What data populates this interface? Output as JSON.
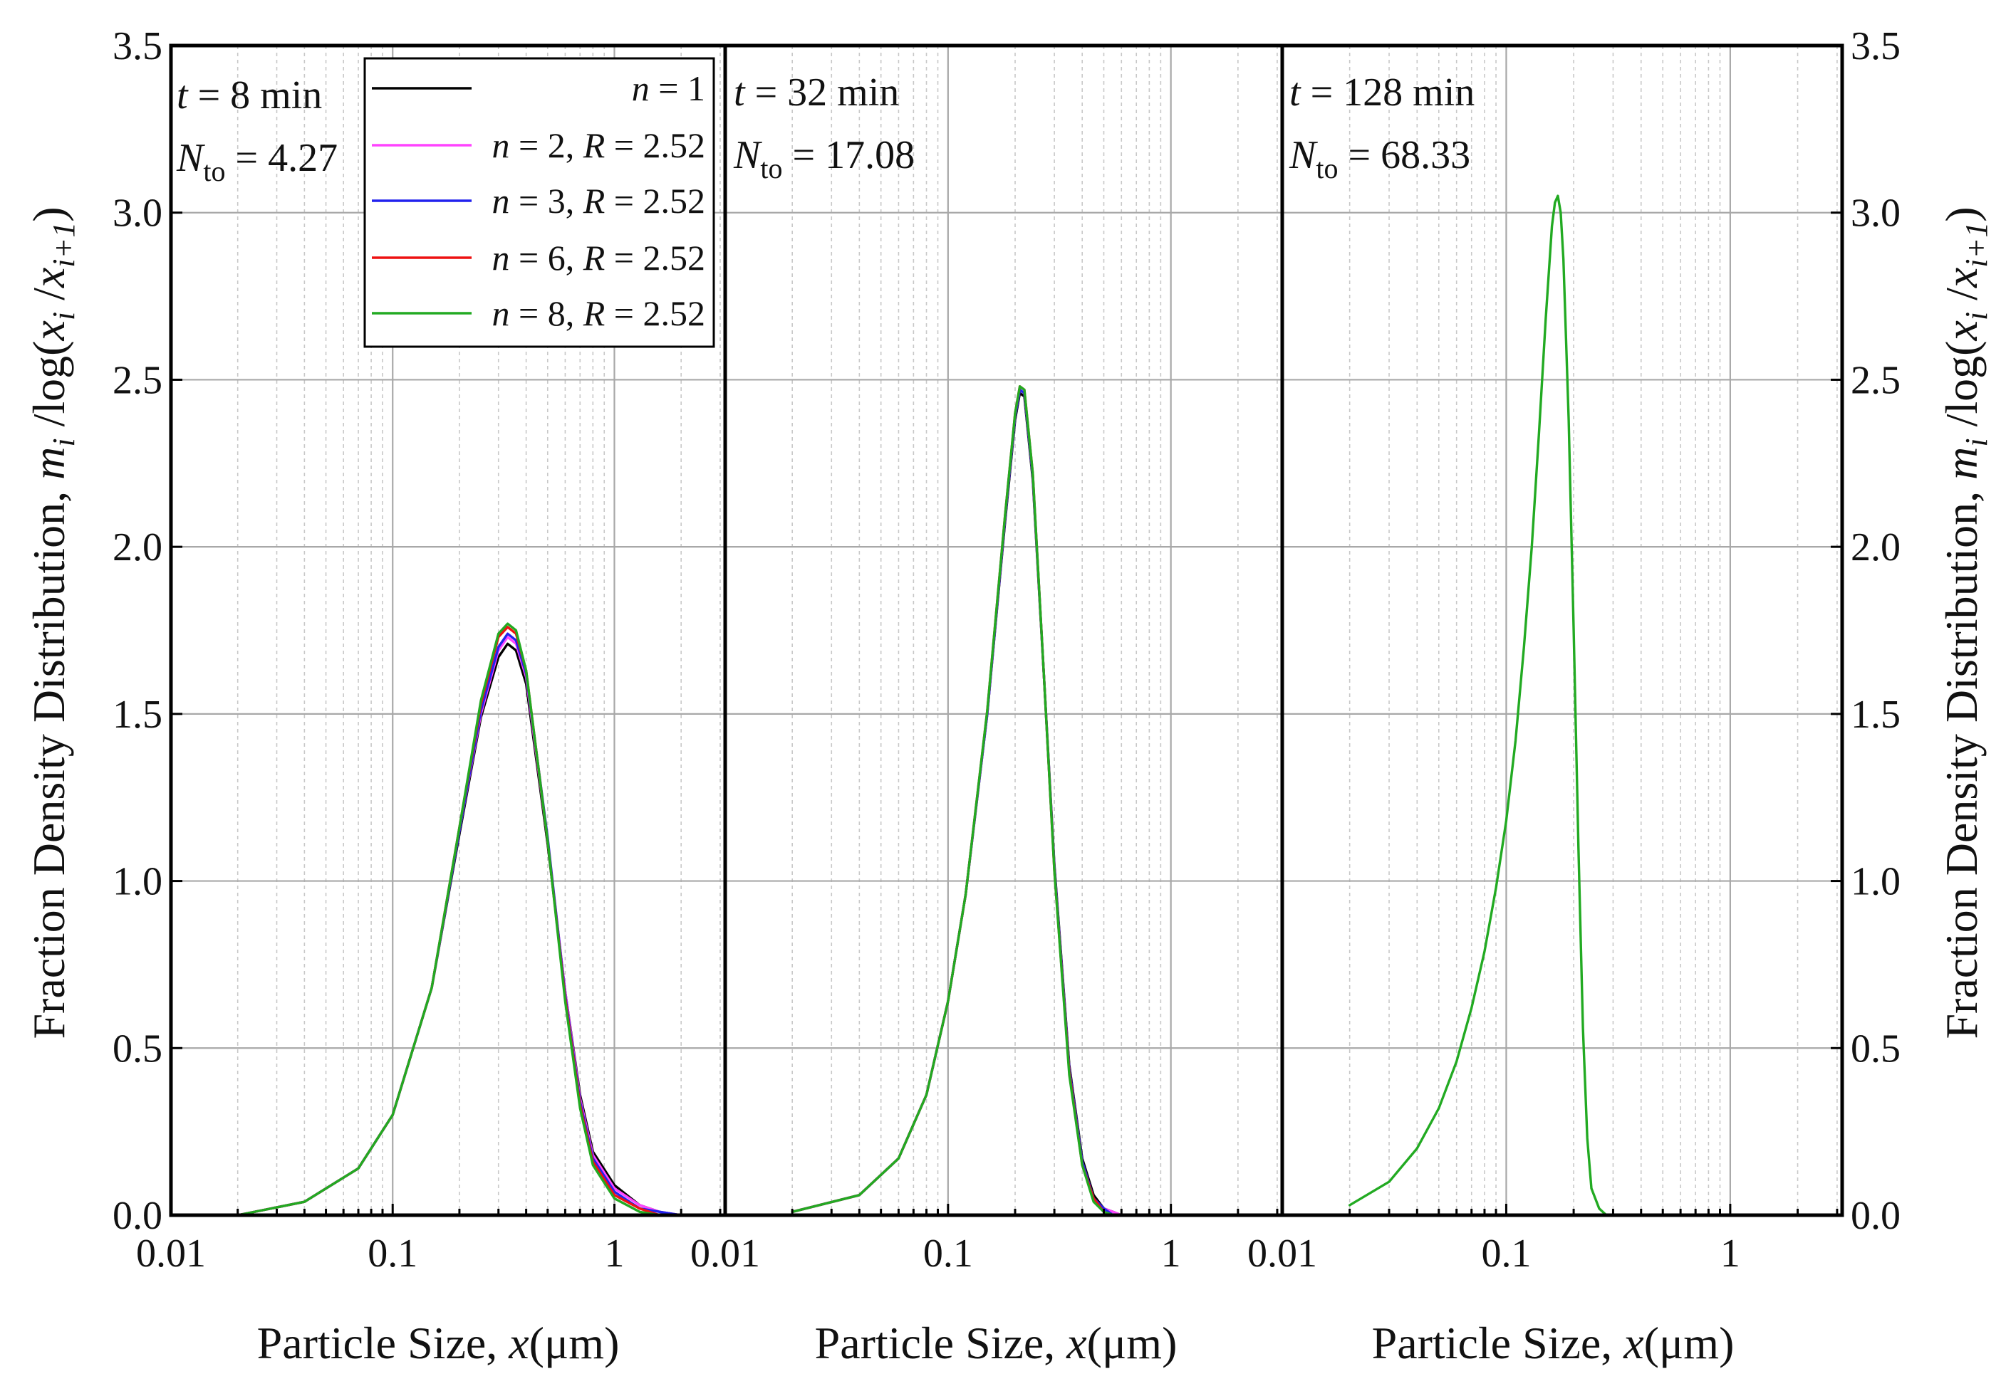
{
  "figure": {
    "ylabel_text": "Fraction Density Distribution, ",
    "ylabel_m": "m",
    "ylabel_i": "i",
    "ylabel_mid": " /log(",
    "ylabel_x1": "x",
    "ylabel_sub1": "i",
    "ylabel_slash": " /",
    "ylabel_x2": "x",
    "ylabel_sub2": "i+1",
    "ylabel_close": ")",
    "xlabel_text": "Particle Size, ",
    "xlabel_var": "x",
    "xlabel_unit": "(μm)",
    "colors": {
      "n1": "#000000",
      "n2": "#ff44ff",
      "n3": "#2222ee",
      "n6": "#ee1111",
      "n8": "#22aa22"
    },
    "legend": {
      "items": [
        {
          "var": "n",
          "eq": " = 1",
          "r": "",
          "req": "",
          "color_key": "n1"
        },
        {
          "var": "n",
          "eq": " = 2, ",
          "r": "R",
          "req": " = 2.52",
          "color_key": "n2"
        },
        {
          "var": "n",
          "eq": " = 3, ",
          "r": "R",
          "req": " = 2.52",
          "color_key": "n3"
        },
        {
          "var": "n",
          "eq": " = 6, ",
          "r": "R",
          "req": " = 2.52",
          "color_key": "n6"
        },
        {
          "var": "n",
          "eq": " = 8, ",
          "r": "R",
          "req": " = 2.52",
          "color_key": "n8"
        }
      ]
    },
    "panels": [
      {
        "t_var": "t",
        "t_text": " = 8 min",
        "n_var": "N",
        "n_sub": "to",
        "n_text": " = 4.27"
      },
      {
        "t_var": "t",
        "t_text": " = 32 min",
        "n_var": "N",
        "n_sub": "to",
        "n_text": " = 17.08"
      },
      {
        "t_var": "t",
        "t_text": " = 128 min",
        "n_var": "N",
        "n_sub": "to",
        "n_text": " = 68.33"
      }
    ]
  },
  "chart_data": [
    {
      "type": "line",
      "title": "",
      "xscale": "log",
      "xlim": [
        0.01,
        3.16
      ],
      "ylim": [
        0,
        3.5
      ],
      "xticks": [
        "0.01",
        "0.1",
        "1"
      ],
      "yticks": [
        "0.0",
        "0.5",
        "1.0",
        "1.5",
        "2.0",
        "2.5",
        "3.0",
        "3.5"
      ],
      "grid": true,
      "legend_position": "top-right",
      "series": [
        {
          "name": "n = 1",
          "color_key": "n1",
          "x": [
            0.02,
            0.04,
            0.07,
            0.1,
            0.15,
            0.2,
            0.25,
            0.3,
            0.33,
            0.36,
            0.4,
            0.5,
            0.6,
            0.7,
            0.8,
            1.0,
            1.3,
            1.6,
            2.0
          ],
          "y": [
            0.0,
            0.04,
            0.14,
            0.3,
            0.68,
            1.14,
            1.49,
            1.67,
            1.71,
            1.69,
            1.59,
            1.11,
            0.67,
            0.36,
            0.19,
            0.09,
            0.03,
            0.01,
            0.0
          ]
        },
        {
          "name": "n = 2, R = 2.52",
          "color_key": "n2",
          "x": [
            0.02,
            0.04,
            0.07,
            0.1,
            0.15,
            0.2,
            0.25,
            0.3,
            0.33,
            0.36,
            0.4,
            0.5,
            0.6,
            0.7,
            0.8,
            1.0,
            1.3,
            1.6,
            2.0
          ],
          "y": [
            0.0,
            0.04,
            0.14,
            0.3,
            0.68,
            1.15,
            1.5,
            1.69,
            1.73,
            1.71,
            1.61,
            1.12,
            0.67,
            0.35,
            0.18,
            0.08,
            0.03,
            0.01,
            0.0
          ]
        },
        {
          "name": "n = 3, R = 2.52",
          "color_key": "n3",
          "x": [
            0.02,
            0.04,
            0.07,
            0.1,
            0.15,
            0.2,
            0.25,
            0.3,
            0.33,
            0.36,
            0.4,
            0.5,
            0.6,
            0.7,
            0.8,
            1.0,
            1.3,
            1.6,
            2.0
          ],
          "y": [
            0.0,
            0.04,
            0.14,
            0.3,
            0.68,
            1.15,
            1.51,
            1.7,
            1.74,
            1.72,
            1.62,
            1.13,
            0.66,
            0.34,
            0.17,
            0.07,
            0.02,
            0.01,
            0.0
          ]
        },
        {
          "name": "n = 6, R = 2.52",
          "color_key": "n6",
          "x": [
            0.02,
            0.04,
            0.07,
            0.1,
            0.15,
            0.2,
            0.25,
            0.3,
            0.33,
            0.36,
            0.4,
            0.5,
            0.6,
            0.7,
            0.8,
            1.0,
            1.3,
            1.6,
            2.0
          ],
          "y": [
            0.0,
            0.04,
            0.14,
            0.3,
            0.68,
            1.16,
            1.53,
            1.73,
            1.76,
            1.74,
            1.63,
            1.12,
            0.65,
            0.33,
            0.16,
            0.06,
            0.02,
            0.0,
            0.0
          ]
        },
        {
          "name": "n = 8, R = 2.52",
          "color_key": "n8",
          "x": [
            0.02,
            0.04,
            0.07,
            0.1,
            0.15,
            0.2,
            0.25,
            0.3,
            0.33,
            0.36,
            0.4,
            0.5,
            0.6,
            0.7,
            0.8,
            1.0,
            1.3,
            1.6,
            2.0
          ],
          "y": [
            0.0,
            0.04,
            0.14,
            0.3,
            0.68,
            1.16,
            1.54,
            1.74,
            1.77,
            1.75,
            1.63,
            1.12,
            0.64,
            0.32,
            0.15,
            0.05,
            0.01,
            0.0,
            0.0
          ]
        }
      ]
    },
    {
      "type": "line",
      "title": "",
      "xscale": "log",
      "xlim": [
        0.01,
        3.16
      ],
      "ylim": [
        0,
        3.5
      ],
      "xticks": [
        "0.01",
        "0.1",
        "1"
      ],
      "yticks": [
        "0.0",
        "0.5",
        "1.0",
        "1.5",
        "2.0",
        "2.5",
        "3.0",
        "3.5"
      ],
      "grid": true,
      "series": [
        {
          "name": "n = 1",
          "color_key": "n1",
          "x": [
            0.02,
            0.04,
            0.06,
            0.08,
            0.1,
            0.12,
            0.15,
            0.18,
            0.2,
            0.21,
            0.22,
            0.24,
            0.27,
            0.3,
            0.35,
            0.4,
            0.45,
            0.5,
            0.55,
            0.6,
            0.7,
            1.0,
            3.0
          ],
          "y": [
            0.01,
            0.06,
            0.17,
            0.36,
            0.64,
            0.96,
            1.5,
            2.07,
            2.38,
            2.46,
            2.45,
            2.2,
            1.6,
            1.05,
            0.45,
            0.17,
            0.06,
            0.02,
            0.01,
            0.0,
            0.0,
            0.0,
            0.0
          ]
        },
        {
          "name": "n = 2, R = 2.52",
          "color_key": "n2",
          "x": [
            0.02,
            0.04,
            0.06,
            0.08,
            0.1,
            0.12,
            0.15,
            0.18,
            0.2,
            0.21,
            0.22,
            0.24,
            0.27,
            0.3,
            0.35,
            0.4,
            0.45,
            0.5,
            0.55,
            0.6,
            0.7,
            1.0,
            3.0
          ],
          "y": [
            0.01,
            0.06,
            0.17,
            0.36,
            0.64,
            0.96,
            1.5,
            2.08,
            2.39,
            2.47,
            2.46,
            2.21,
            1.6,
            1.04,
            0.44,
            0.16,
            0.05,
            0.02,
            0.01,
            0.0,
            0.0,
            0.0,
            0.0
          ]
        },
        {
          "name": "n = 3, R = 2.52",
          "color_key": "n3",
          "x": [
            0.02,
            0.04,
            0.06,
            0.08,
            0.1,
            0.12,
            0.15,
            0.18,
            0.2,
            0.21,
            0.22,
            0.24,
            0.27,
            0.3,
            0.35,
            0.4,
            0.45,
            0.5,
            0.55,
            0.6,
            0.7,
            1.0,
            3.0
          ],
          "y": [
            0.01,
            0.06,
            0.17,
            0.36,
            0.64,
            0.96,
            1.5,
            2.08,
            2.39,
            2.47,
            2.46,
            2.21,
            1.6,
            1.04,
            0.44,
            0.16,
            0.05,
            0.02,
            0.0,
            0.0,
            0.0,
            0.0,
            0.0
          ]
        },
        {
          "name": "n = 6, R = 2.52",
          "color_key": "n6",
          "x": [
            0.02,
            0.04,
            0.06,
            0.08,
            0.1,
            0.12,
            0.15,
            0.18,
            0.2,
            0.21,
            0.22,
            0.24,
            0.27,
            0.3,
            0.35,
            0.4,
            0.45,
            0.5,
            0.55,
            0.6,
            0.7,
            1.0,
            3.0
          ],
          "y": [
            0.01,
            0.06,
            0.17,
            0.36,
            0.64,
            0.96,
            1.51,
            2.09,
            2.4,
            2.48,
            2.47,
            2.22,
            1.6,
            1.03,
            0.43,
            0.15,
            0.05,
            0.01,
            0.0,
            0.0,
            0.0,
            0.0,
            0.0
          ]
        },
        {
          "name": "n = 8, R = 2.52",
          "color_key": "n8",
          "x": [
            0.02,
            0.04,
            0.06,
            0.08,
            0.1,
            0.12,
            0.15,
            0.18,
            0.2,
            0.21,
            0.22,
            0.24,
            0.27,
            0.3,
            0.35,
            0.4,
            0.45,
            0.5,
            0.55,
            0.6,
            0.7,
            1.0,
            3.0
          ],
          "y": [
            0.01,
            0.06,
            0.17,
            0.36,
            0.64,
            0.96,
            1.51,
            2.09,
            2.4,
            2.48,
            2.47,
            2.22,
            1.6,
            1.03,
            0.42,
            0.15,
            0.04,
            0.01,
            0.0,
            0.0,
            0.0,
            0.0,
            0.0
          ]
        }
      ]
    },
    {
      "type": "line",
      "title": "",
      "xscale": "log",
      "xlim": [
        0.01,
        3.16
      ],
      "ylim": [
        0,
        3.5
      ],
      "xticks": [
        "0.01",
        "0.1",
        "1"
      ],
      "yticks": [
        "0.0",
        "0.5",
        "1.0",
        "1.5",
        "2.0",
        "2.5",
        "3.0",
        "3.5"
      ],
      "grid": true,
      "series": [
        {
          "name": "n = 8, R = 2.52",
          "color_key": "n8",
          "x": [
            0.02,
            0.03,
            0.04,
            0.05,
            0.06,
            0.07,
            0.08,
            0.09,
            0.1,
            0.11,
            0.12,
            0.13,
            0.14,
            0.15,
            0.16,
            0.165,
            0.17,
            0.175,
            0.18,
            0.19,
            0.2,
            0.21,
            0.22,
            0.23,
            0.24,
            0.26,
            0.28,
            0.3,
            1.0,
            3.0
          ],
          "y": [
            0.03,
            0.1,
            0.2,
            0.32,
            0.46,
            0.62,
            0.79,
            0.98,
            1.18,
            1.42,
            1.7,
            2.0,
            2.34,
            2.68,
            2.96,
            3.03,
            3.05,
            3.0,
            2.86,
            2.38,
            1.75,
            1.1,
            0.56,
            0.23,
            0.08,
            0.02,
            0.0,
            0.0,
            0.0,
            0.0
          ]
        }
      ]
    }
  ]
}
